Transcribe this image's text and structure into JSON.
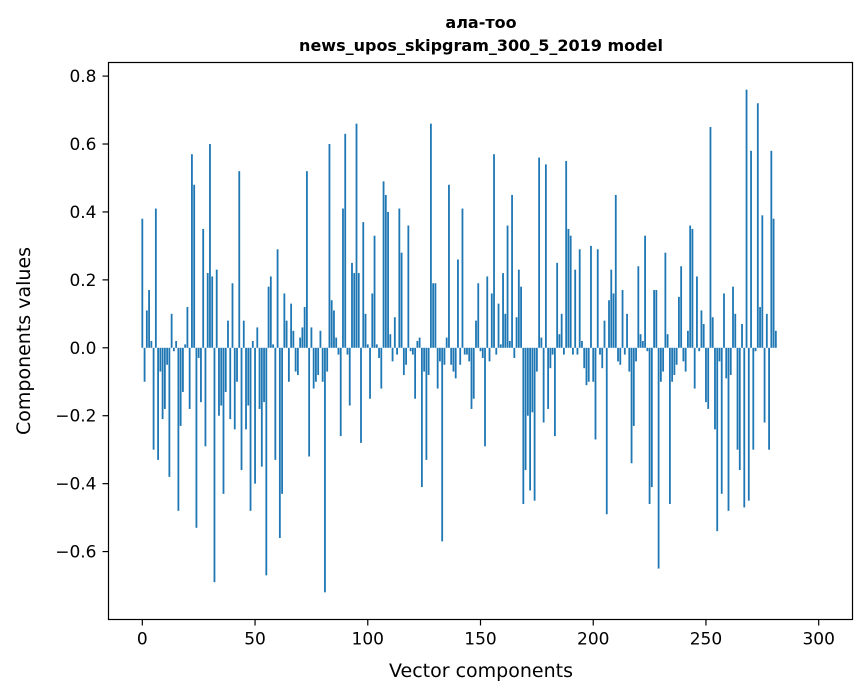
{
  "chart_data": {
    "type": "bar",
    "title": "ала-тоо",
    "subtitle": "news_upos_skipgram_300_5_2019 model",
    "xlabel": "Vector components",
    "ylabel": "Components values",
    "xlim": [
      -15,
      315
    ],
    "ylim": [
      -0.8,
      0.84
    ],
    "xticks": [
      0,
      50,
      100,
      150,
      200,
      250,
      300
    ],
    "yticks": [
      -0.6,
      -0.4,
      -0.2,
      0.0,
      0.2,
      0.4,
      0.6,
      0.8
    ],
    "xtick_labels": [
      "0",
      "50",
      "100",
      "150",
      "200",
      "250",
      "300"
    ],
    "ytick_labels": [
      "−0.6",
      "−0.4",
      "−0.2",
      "0.0",
      "0.2",
      "0.4",
      "0.6",
      "0.8"
    ],
    "bar_color": "#1f77b4",
    "grid": false,
    "values": [
      0.38,
      -0.1,
      0.11,
      0.17,
      0.02,
      -0.3,
      0.41,
      -0.33,
      -0.07,
      -0.21,
      -0.18,
      -0.05,
      -0.38,
      0.1,
      -0.01,
      0.02,
      -0.48,
      -0.23,
      -0.13,
      0.01,
      0.12,
      -0.18,
      0.57,
      0.48,
      -0.53,
      -0.03,
      -0.16,
      0.35,
      -0.29,
      0.22,
      0.6,
      0.21,
      -0.69,
      0.23,
      -0.2,
      -0.17,
      -0.43,
      -0.13,
      0.08,
      -0.21,
      0.19,
      -0.24,
      -0.1,
      0.52,
      -0.36,
      0.08,
      -0.24,
      -0.17,
      -0.48,
      0.02,
      -0.4,
      0.06,
      -0.18,
      -0.35,
      -0.16,
      -0.67,
      0.18,
      0.21,
      0.01,
      -0.33,
      0.29,
      -0.56,
      -0.43,
      0.16,
      0.08,
      -0.1,
      0.13,
      0.05,
      -0.07,
      -0.08,
      0.03,
      0.06,
      0.12,
      0.52,
      -0.32,
      0.06,
      -0.12,
      -0.1,
      -0.08,
      0.05,
      -0.1,
      -0.72,
      -0.07,
      0.6,
      0.14,
      0.11,
      0.03,
      -0.02,
      -0.26,
      0.41,
      0.63,
      -0.02,
      -0.17,
      0.25,
      0.22,
      0.66,
      0.22,
      -0.28,
      0.37,
      0.1,
      0.01,
      -0.15,
      0.16,
      0.33,
      0.01,
      -0.03,
      -0.12,
      0.49,
      0.45,
      0.4,
      0.04,
      -0.04,
      0.09,
      -0.02,
      0.41,
      0.28,
      -0.08,
      -0.05,
      0.36,
      -0.01,
      -0.02,
      -0.15,
      0.02,
      0.03,
      -0.41,
      -0.07,
      -0.33,
      -0.08,
      0.66,
      0.19,
      0.19,
      -0.12,
      -0.04,
      -0.57,
      -0.05,
      0.03,
      0.48,
      -0.05,
      -0.07,
      -0.09,
      0.26,
      -0.05,
      0.41,
      -0.02,
      -0.02,
      -0.04,
      -0.18,
      -0.15,
      0.08,
      0.19,
      -0.01,
      -0.03,
      -0.29,
      0.21,
      -0.04,
      0.16,
      0.57,
      -0.02,
      0.13,
      0.01,
      0.22,
      0.1,
      0.36,
      0.02,
      0.45,
      -0.03,
      0.09,
      0.23,
      0.18,
      -0.46,
      -0.36,
      -0.2,
      -0.42,
      -0.19,
      -0.45,
      -0.07,
      0.56,
      0.03,
      -0.22,
      0.54,
      -0.18,
      -0.06,
      -0.02,
      -0.26,
      0.25,
      0.04,
      0.1,
      -0.02,
      0.55,
      0.35,
      0.33,
      -0.02,
      0.23,
      -0.02,
      0.29,
      0.02,
      -0.06,
      -0.11,
      -0.1,
      0.3,
      -0.1,
      -0.27,
      0.29,
      -0.02,
      -0.06,
      0.08,
      -0.49,
      0.14,
      0.23,
      0.16,
      0.45,
      -0.04,
      -0.05,
      0.17,
      -0.02,
      0.1,
      -0.07,
      -0.34,
      -0.23,
      -0.04,
      0.24,
      0.04,
      0.02,
      0.33,
      -0.01,
      -0.46,
      -0.41,
      0.17,
      0.17,
      -0.65,
      -0.1,
      -0.07,
      0.28,
      0.04,
      -0.46,
      -0.1,
      -0.08,
      -0.05,
      0.15,
      0.24,
      -0.04,
      -0.07,
      0.05,
      0.36,
      0.35,
      -0.12,
      0.21,
      -0.01,
      0.11,
      0.07,
      -0.16,
      -0.18,
      0.65,
      0.09,
      -0.24,
      -0.54,
      -0.04,
      -0.43,
      0.16,
      -0.09,
      -0.48,
      -0.08,
      0.18,
      0.1,
      -0.3,
      -0.36,
      0.07,
      -0.47,
      0.76,
      -0.45,
      0.58,
      -0.3,
      -0.01,
      0.72,
      0.12,
      0.39,
      -0.22,
      0.1,
      -0.3,
      0.58,
      0.38,
      0.05
    ]
  }
}
